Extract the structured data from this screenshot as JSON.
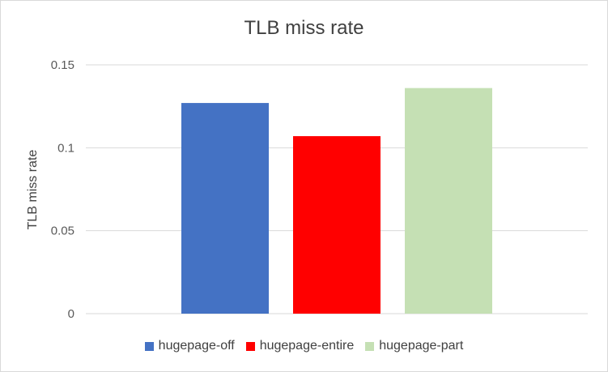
{
  "chart_data": {
    "type": "bar",
    "title": "TLB miss rate",
    "xlabel": "",
    "ylabel": "TLB miss rate",
    "ylim": [
      0,
      0.15
    ],
    "yticks": [
      0,
      0.05,
      0.1,
      0.15
    ],
    "ytick_labels": [
      "0",
      "0.05",
      "0.1",
      "0.15"
    ],
    "grid": true,
    "legend_position": "bottom",
    "series": [
      {
        "name": "hugepage-off",
        "color": "#4472c4",
        "values": [
          0.127
        ]
      },
      {
        "name": "hugepage-entire",
        "color": "#ff0000",
        "values": [
          0.107
        ]
      },
      {
        "name": "hugepage-part",
        "color": "#c5e0b4",
        "values": [
          0.136
        ]
      }
    ]
  }
}
